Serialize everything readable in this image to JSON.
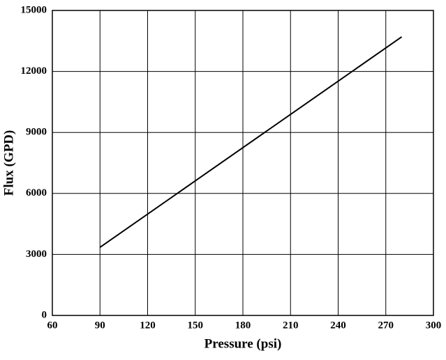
{
  "chart_data": {
    "type": "line",
    "x_label": "Pressure (psi)",
    "y_label": "Flux (GPD)",
    "x": [
      90,
      280
    ],
    "series": [
      {
        "color": "#000000",
        "values": [
          3350,
          13700
        ]
      }
    ],
    "xlim": [
      60,
      300
    ],
    "xticks": [
      60,
      90,
      120,
      150,
      180,
      210,
      240,
      270,
      300
    ],
    "ylim": [
      0,
      15000
    ],
    "yticks": [
      0,
      3000,
      6000,
      9000,
      12000,
      15000
    ],
    "grid": true
  }
}
